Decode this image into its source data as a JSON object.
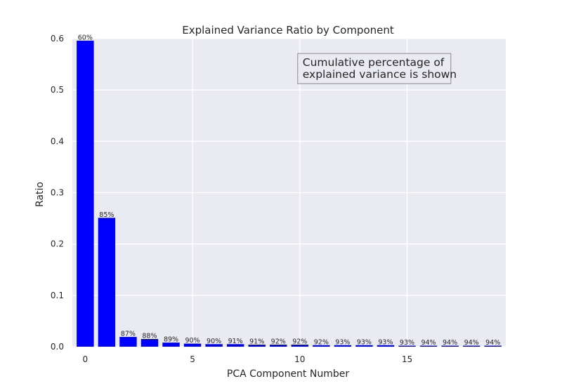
{
  "chart_data": {
    "type": "bar",
    "title": "Explained Variance Ratio by Component",
    "xlabel": "PCA Component Number",
    "ylabel": "Ratio",
    "xlim": [
      -0.6,
      19.6
    ],
    "ylim": [
      0,
      0.6
    ],
    "xticks": [
      0,
      5,
      10,
      15
    ],
    "yticks": [
      0.0,
      0.1,
      0.2,
      0.3,
      0.4,
      0.5,
      0.6
    ],
    "ytick_labels": [
      "0.0",
      "0.1",
      "0.2",
      "0.3",
      "0.4",
      "0.5",
      "0.6"
    ],
    "grid": true,
    "x": [
      0,
      1,
      2,
      3,
      4,
      5,
      6,
      7,
      8,
      9,
      10,
      11,
      12,
      13,
      14,
      15,
      16,
      17,
      18,
      19
    ],
    "values": [
      0.596,
      0.251,
      0.019,
      0.015,
      0.008,
      0.006,
      0.005,
      0.005,
      0.004,
      0.004,
      0.004,
      0.003,
      0.003,
      0.003,
      0.003,
      0.002,
      0.002,
      0.002,
      0.002,
      0.002
    ],
    "bar_labels": [
      "60%",
      "85%",
      "87%",
      "88%",
      "89%",
      "90%",
      "90%",
      "91%",
      "91%",
      "92%",
      "92%",
      "92%",
      "93%",
      "93%",
      "93%",
      "93%",
      "94%",
      "94%",
      "94%",
      "94%"
    ],
    "bar_color": "#0000ff",
    "background_color": "#eaeaf2",
    "grid_color": "#ffffff",
    "annotation": {
      "lines": [
        "Cumulative percentage of",
        "explained variance is shown"
      ],
      "x": 10,
      "y": 0.53
    }
  }
}
